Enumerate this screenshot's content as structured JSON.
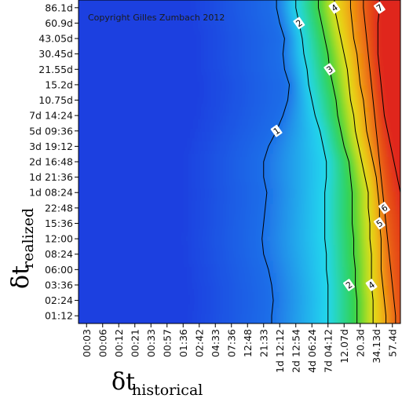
{
  "chart_data": {
    "type": "heatmap",
    "copyright": "Copyright Gilles Zumbach 2012",
    "xlabel": {
      "symbol": "δt",
      "subscript": "historical"
    },
    "ylabel": {
      "symbol": "δt",
      "subscript": "realized"
    },
    "x_ticks": [
      "00:03",
      "00:06",
      "00:12",
      "00:21",
      "00:33",
      "00:57",
      "01:36",
      "02:42",
      "04:33",
      "07:36",
      "12:48",
      "21:33",
      "1d 12:12",
      "2d 12:54",
      "4d 06:24",
      "7d 04:12",
      "12.07d",
      "20.3d",
      "34.13d",
      "57.4d"
    ],
    "y_ticks": [
      "01:12",
      "02:24",
      "03:36",
      "06:00",
      "08:24",
      "12:00",
      "15:36",
      "22:48",
      "1d 08:24",
      "1d 21:36",
      "2d 16:48",
      "3d 19:12",
      "5d 09:36",
      "7d 14:24",
      "10.75d",
      "15.2d",
      "21.55d",
      "30.45d",
      "43.05d",
      "60.9d",
      "86.1d"
    ],
    "contour_levels": [
      1,
      2,
      3,
      4,
      5,
      6,
      7
    ],
    "contour_labels": [
      "1",
      "2",
      "3",
      "4",
      "5",
      "6",
      "7"
    ],
    "contours_x_index_by_y_index": {
      "1": [
        11.5,
        11.6,
        11.5,
        11.3,
        11.0,
        10.9,
        11.0,
        11.1,
        11.2,
        11.0,
        11.0,
        11.3,
        11.8,
        12.2,
        12.5,
        12.6,
        12.3,
        12.2,
        12.3,
        12.0,
        11.8
      ],
      "2": [
        15.0,
        15.0,
        15.0,
        14.9,
        14.9,
        14.8,
        14.8,
        14.8,
        14.8,
        14.9,
        14.9,
        14.7,
        14.5,
        14.2,
        14.0,
        13.8,
        13.7,
        13.5,
        13.4,
        13.2,
        13.0
      ],
      "3": [
        16.8,
        16.8,
        16.7,
        16.7,
        16.6,
        16.6,
        16.5,
        16.5,
        16.5,
        16.4,
        16.3,
        16.0,
        15.8,
        15.6,
        15.5,
        15.3,
        15.1,
        15.0,
        14.8,
        14.6,
        14.4
      ],
      "4": [
        17.8,
        17.8,
        17.7,
        17.7,
        17.7,
        17.6,
        17.6,
        17.5,
        17.5,
        17.3,
        17.1,
        16.9,
        16.7,
        16.6,
        16.4,
        16.3,
        16.2,
        16.0,
        15.8,
        15.6,
        15.4
      ],
      "5": [
        18.6,
        18.5,
        18.4,
        18.3,
        18.3,
        18.3,
        18.2,
        18.2,
        18.1,
        18.0,
        17.8,
        17.6,
        17.4,
        17.3,
        17.2,
        17.0,
        16.9,
        16.8,
        16.6,
        16.5,
        16.4
      ],
      "6": [
        19.2,
        19.1,
        19.0,
        18.9,
        18.8,
        18.7,
        18.6,
        18.5,
        18.4,
        18.3,
        18.2,
        18.1,
        18.0,
        17.9,
        17.8,
        17.7,
        17.6,
        17.5,
        17.4,
        17.3,
        17.2
      ],
      "7": [
        20.1,
        20.1,
        20.1,
        20.1,
        20.1,
        20.0,
        19.9,
        19.7,
        19.5,
        19.3,
        19.1,
        18.9,
        18.7,
        18.5,
        18.4,
        18.3,
        18.2,
        18.1,
        18.1,
        18.1,
        18.2
      ]
    }
  },
  "colors": {
    "low": "#1a3fe0",
    "mid_blue": "#1f6fe8",
    "cyan": "#24d8ee",
    "green": "#32d23a",
    "yellow": "#e8e41a",
    "orange": "#f08a10",
    "high": "#e0281c",
    "contour": "#000000"
  }
}
